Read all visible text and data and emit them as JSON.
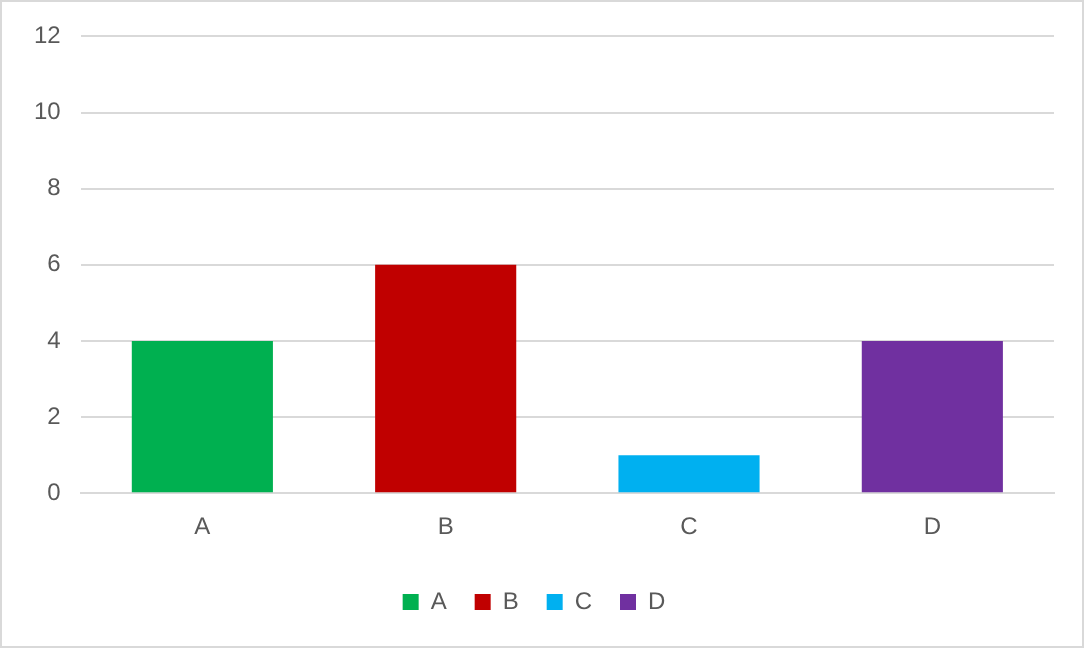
{
  "chart_data": {
    "type": "bar",
    "categories": [
      "A",
      "B",
      "C",
      "D"
    ],
    "series": [
      {
        "name": "A",
        "color": "#00b050",
        "values": [
          4,
          null,
          null,
          null
        ]
      },
      {
        "name": "B",
        "color": "#c00000",
        "values": [
          null,
          6,
          null,
          null
        ]
      },
      {
        "name": "C",
        "color": "#00b0f0",
        "values": [
          null,
          null,
          1,
          null
        ]
      },
      {
        "name": "D",
        "color": "#7030a0",
        "values": [
          null,
          null,
          null,
          4
        ]
      }
    ],
    "ylim": [
      0,
      12
    ],
    "yticks": [
      0,
      2,
      4,
      6,
      8,
      10,
      12
    ],
    "grid": "y",
    "legend": "bottom"
  }
}
